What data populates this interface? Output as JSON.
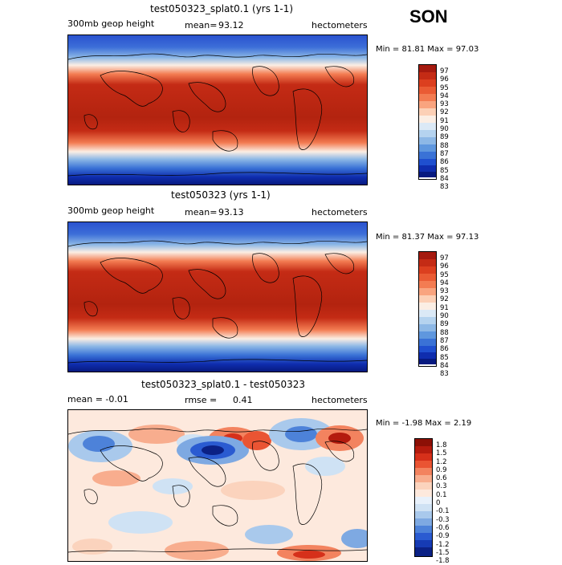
{
  "season": "SON",
  "panels": [
    {
      "title": "test050323_splat0.1 (yrs 1-1)",
      "left_label": "300mb geop height",
      "mean_label": "mean=",
      "mean_value": "93.12",
      "units": "hectometers",
      "min_text": "Min =  81.81 Max =  97.03",
      "colorbar_labels": [
        "97",
        "96",
        "95",
        "94",
        "93",
        "92",
        "91",
        "90",
        "89",
        "88",
        "87",
        "86",
        "85",
        "84",
        "83"
      ]
    },
    {
      "title": "test050323 (yrs 1-1)",
      "left_label": "300mb geop height",
      "mean_label": "mean=",
      "mean_value": "93.13",
      "units": "hectometers",
      "min_text": "Min =  81.37 Max =  97.13",
      "colorbar_labels": [
        "97",
        "96",
        "95",
        "94",
        "93",
        "92",
        "91",
        "90",
        "89",
        "88",
        "87",
        "86",
        "85",
        "84",
        "83"
      ]
    },
    {
      "title": "test050323_splat0.1 - test050323",
      "left_label": "mean =  -0.01",
      "mean_label": "rmse =",
      "mean_value": "0.41",
      "units": "hectometers",
      "min_text": "Min =  -1.98 Max =   2.19",
      "colorbar_labels": [
        "1.8",
        "1.5",
        "1.2",
        "0.9",
        "0.6",
        "0.3",
        "0.1",
        "0",
        "-0.1",
        "-0.3",
        "-0.6",
        "-0.9",
        "-1.2",
        "-1.5",
        "-1.8"
      ]
    }
  ],
  "colors": {
    "field_scale": [
      "#a51a0f",
      "#c42b15",
      "#dc3f1f",
      "#ea5b34",
      "#f37c52",
      "#f9a47f",
      "#fcd0b6",
      "#fbeee4",
      "#dbe9f6",
      "#b5d3ef",
      "#8db8e6",
      "#5f97de",
      "#3a72d6",
      "#1f4fcf",
      "#0f2dae",
      "#071a80"
    ],
    "diff_scale": [
      "#8c1006",
      "#b41b0e",
      "#d6301a",
      "#ea5433",
      "#f3835f",
      "#f8ad8e",
      "#fbd3bd",
      "#fde9dd",
      "#e8f1fb",
      "#cfe2f4",
      "#a9c9ec",
      "#7ea9e2",
      "#4d82d9",
      "#2a5bd1",
      "#163bb4",
      "#0b2185"
    ]
  }
}
